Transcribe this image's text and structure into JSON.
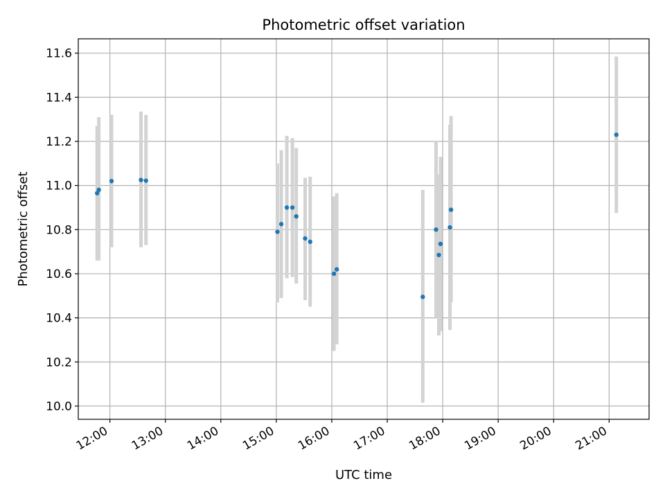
{
  "chart_data": {
    "type": "scatter",
    "title": "Photometric offset variation",
    "xlabel": "UTC time",
    "ylabel": "Photometric offset",
    "x_unit": "hours UTC",
    "x_ticks": [
      {
        "value": 12,
        "label": "12:00"
      },
      {
        "value": 13,
        "label": "13:00"
      },
      {
        "value": 14,
        "label": "14:00"
      },
      {
        "value": 15,
        "label": "15:00"
      },
      {
        "value": 16,
        "label": "16:00"
      },
      {
        "value": 17,
        "label": "17:00"
      },
      {
        "value": 18,
        "label": "18:00"
      },
      {
        "value": 19,
        "label": "19:00"
      },
      {
        "value": 20,
        "label": "20:00"
      },
      {
        "value": 21,
        "label": "21:00"
      }
    ],
    "y_ticks": [
      {
        "value": 10.0,
        "label": "10.0"
      },
      {
        "value": 10.2,
        "label": "10.2"
      },
      {
        "value": 10.4,
        "label": "10.4"
      },
      {
        "value": 10.6,
        "label": "10.6"
      },
      {
        "value": 10.8,
        "label": "10.8"
      },
      {
        "value": 11.0,
        "label": "11.0"
      },
      {
        "value": 11.2,
        "label": "11.2"
      },
      {
        "value": 11.4,
        "label": "11.4"
      },
      {
        "value": 11.6,
        "label": "11.6"
      }
    ],
    "xlim": [
      11.43,
      21.72
    ],
    "ylim": [
      9.94,
      11.665
    ],
    "grid": true,
    "marker_color": "#1f77b4",
    "errorbar_color": "#d3d3d3",
    "points": [
      {
        "x": 11.77,
        "y": 10.965,
        "ylow": 10.66,
        "yhigh": 11.27
      },
      {
        "x": 11.8,
        "y": 10.98,
        "ylow": 10.66,
        "yhigh": 11.31
      },
      {
        "x": 12.03,
        "y": 11.02,
        "ylow": 10.72,
        "yhigh": 11.32
      },
      {
        "x": 12.56,
        "y": 11.025,
        "ylow": 10.72,
        "yhigh": 11.335
      },
      {
        "x": 12.65,
        "y": 11.022,
        "ylow": 10.73,
        "yhigh": 11.32
      },
      {
        "x": 15.02,
        "y": 10.79,
        "ylow": 10.47,
        "yhigh": 11.1
      },
      {
        "x": 15.09,
        "y": 10.825,
        "ylow": 10.49,
        "yhigh": 11.16
      },
      {
        "x": 15.19,
        "y": 10.9,
        "ylow": 10.58,
        "yhigh": 11.225
      },
      {
        "x": 15.29,
        "y": 10.9,
        "ylow": 10.585,
        "yhigh": 11.215
      },
      {
        "x": 15.36,
        "y": 10.86,
        "ylow": 10.555,
        "yhigh": 11.17
      },
      {
        "x": 15.52,
        "y": 10.76,
        "ylow": 10.48,
        "yhigh": 11.035
      },
      {
        "x": 15.61,
        "y": 10.745,
        "ylow": 10.45,
        "yhigh": 11.04
      },
      {
        "x": 16.04,
        "y": 10.6,
        "ylow": 10.25,
        "yhigh": 10.95
      },
      {
        "x": 16.09,
        "y": 10.62,
        "ylow": 10.28,
        "yhigh": 10.965
      },
      {
        "x": 17.64,
        "y": 10.495,
        "ylow": 10.015,
        "yhigh": 10.98
      },
      {
        "x": 17.88,
        "y": 10.8,
        "ylow": 10.4,
        "yhigh": 11.2
      },
      {
        "x": 17.93,
        "y": 10.685,
        "ylow": 10.32,
        "yhigh": 11.05
      },
      {
        "x": 17.96,
        "y": 10.735,
        "ylow": 10.34,
        "yhigh": 11.13
      },
      {
        "x": 18.13,
        "y": 10.81,
        "ylow": 10.345,
        "yhigh": 11.275
      },
      {
        "x": 18.15,
        "y": 10.89,
        "ylow": 10.47,
        "yhigh": 11.315
      },
      {
        "x": 21.13,
        "y": 11.23,
        "ylow": 10.875,
        "yhigh": 11.585
      }
    ]
  }
}
